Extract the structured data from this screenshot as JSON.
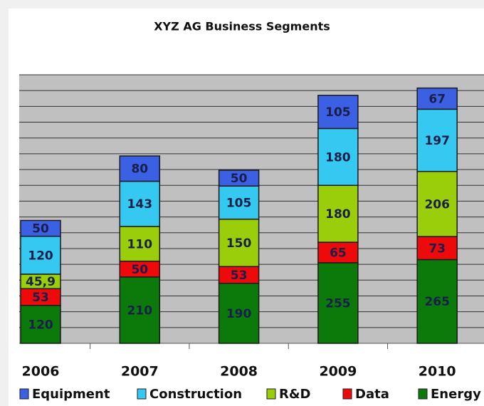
{
  "chart_data": {
    "type": "stacked_bar",
    "title": "XYZ AG Business Segments",
    "categories": [
      "2006",
      "2007",
      "2008",
      "2009",
      "2010"
    ],
    "series": [
      {
        "name": "Energy",
        "color": "#0b7a0b",
        "values": [
          120,
          210,
          190,
          255,
          265
        ]
      },
      {
        "name": "Data",
        "color": "#ee0a0a",
        "values": [
          53,
          50,
          53,
          65,
          73
        ]
      },
      {
        "name": "R&D",
        "color": "#9acd0a",
        "values": [
          45.9,
          110,
          150,
          180,
          206
        ],
        "value_labels": [
          "45,9",
          "110",
          "150",
          "180",
          "206"
        ]
      },
      {
        "name": "Construction",
        "color": "#35c8f0",
        "values": [
          120,
          143,
          105,
          180,
          197
        ]
      },
      {
        "name": "Equipment",
        "color": "#3b60e4",
        "values": [
          50,
          80,
          50,
          105,
          67
        ]
      }
    ],
    "legend_order": [
      "Equipment",
      "Construction",
      "R&D",
      "Data",
      "Energy"
    ],
    "ylim": [
      0,
      850
    ],
    "yticks": [
      0,
      50,
      100,
      150,
      200,
      250,
      300,
      350,
      400,
      450,
      500,
      550,
      600,
      650,
      700,
      750,
      800,
      850
    ],
    "grid": true
  }
}
